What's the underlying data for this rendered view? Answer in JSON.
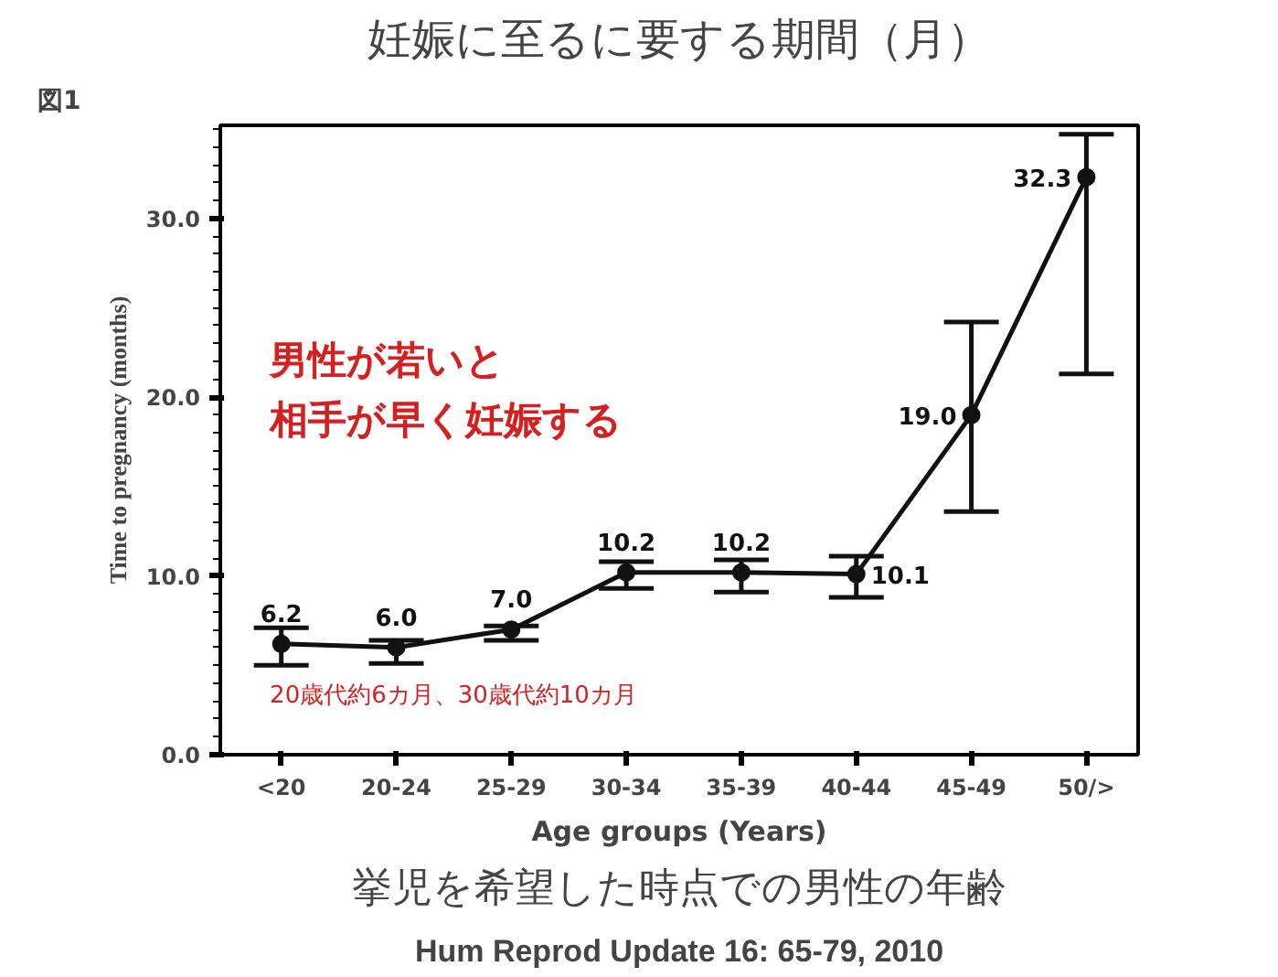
{
  "chart_data": {
    "type": "line",
    "title": "妊娠に至るに要する期間（月）",
    "xlabel": "Age groups (Years)",
    "ylabel": "Time to pregnancy (months)",
    "categories": [
      "<20",
      "20-24",
      "25-29",
      "30-34",
      "35-39",
      "40-44",
      "45-49",
      "50/>"
    ],
    "series": [
      {
        "color": "#111111",
        "values": [
          6.2,
          6.0,
          7.0,
          10.2,
          10.2,
          10.1,
          19.0,
          32.3
        ],
        "value_labels": [
          "6.2",
          "6.0",
          "7.0",
          "10.2",
          "10.2",
          "10.1",
          "19.0",
          "32.3"
        ],
        "errors": [
          [
            5.0,
            7.1
          ],
          [
            5.1,
            6.4
          ],
          [
            6.4,
            7.2
          ],
          [
            9.3,
            10.8
          ],
          [
            9.1,
            10.9
          ],
          [
            8.8,
            11.1
          ],
          [
            13.6,
            24.2
          ],
          [
            21.3,
            34.7
          ]
        ]
      }
    ],
    "ylim": [
      0,
      35.2
    ],
    "yticks": [
      {
        "value": 0,
        "label": "0.0"
      },
      {
        "value": 10,
        "label": "10.0"
      },
      {
        "value": 20,
        "label": "20.0"
      },
      {
        "value": 30,
        "label": "30.0"
      }
    ],
    "marker": "circle",
    "line_style": "solid",
    "grid": false,
    "annotations": [
      "図1",
      "男性が若いと",
      "相手が早く妊娠する",
      "20歳代約6カ月、30歳代約10カ月",
      "挙児を希望した時点での男性の年齢",
      "Hum Reprod Update 16: 65-79, 2010"
    ]
  }
}
